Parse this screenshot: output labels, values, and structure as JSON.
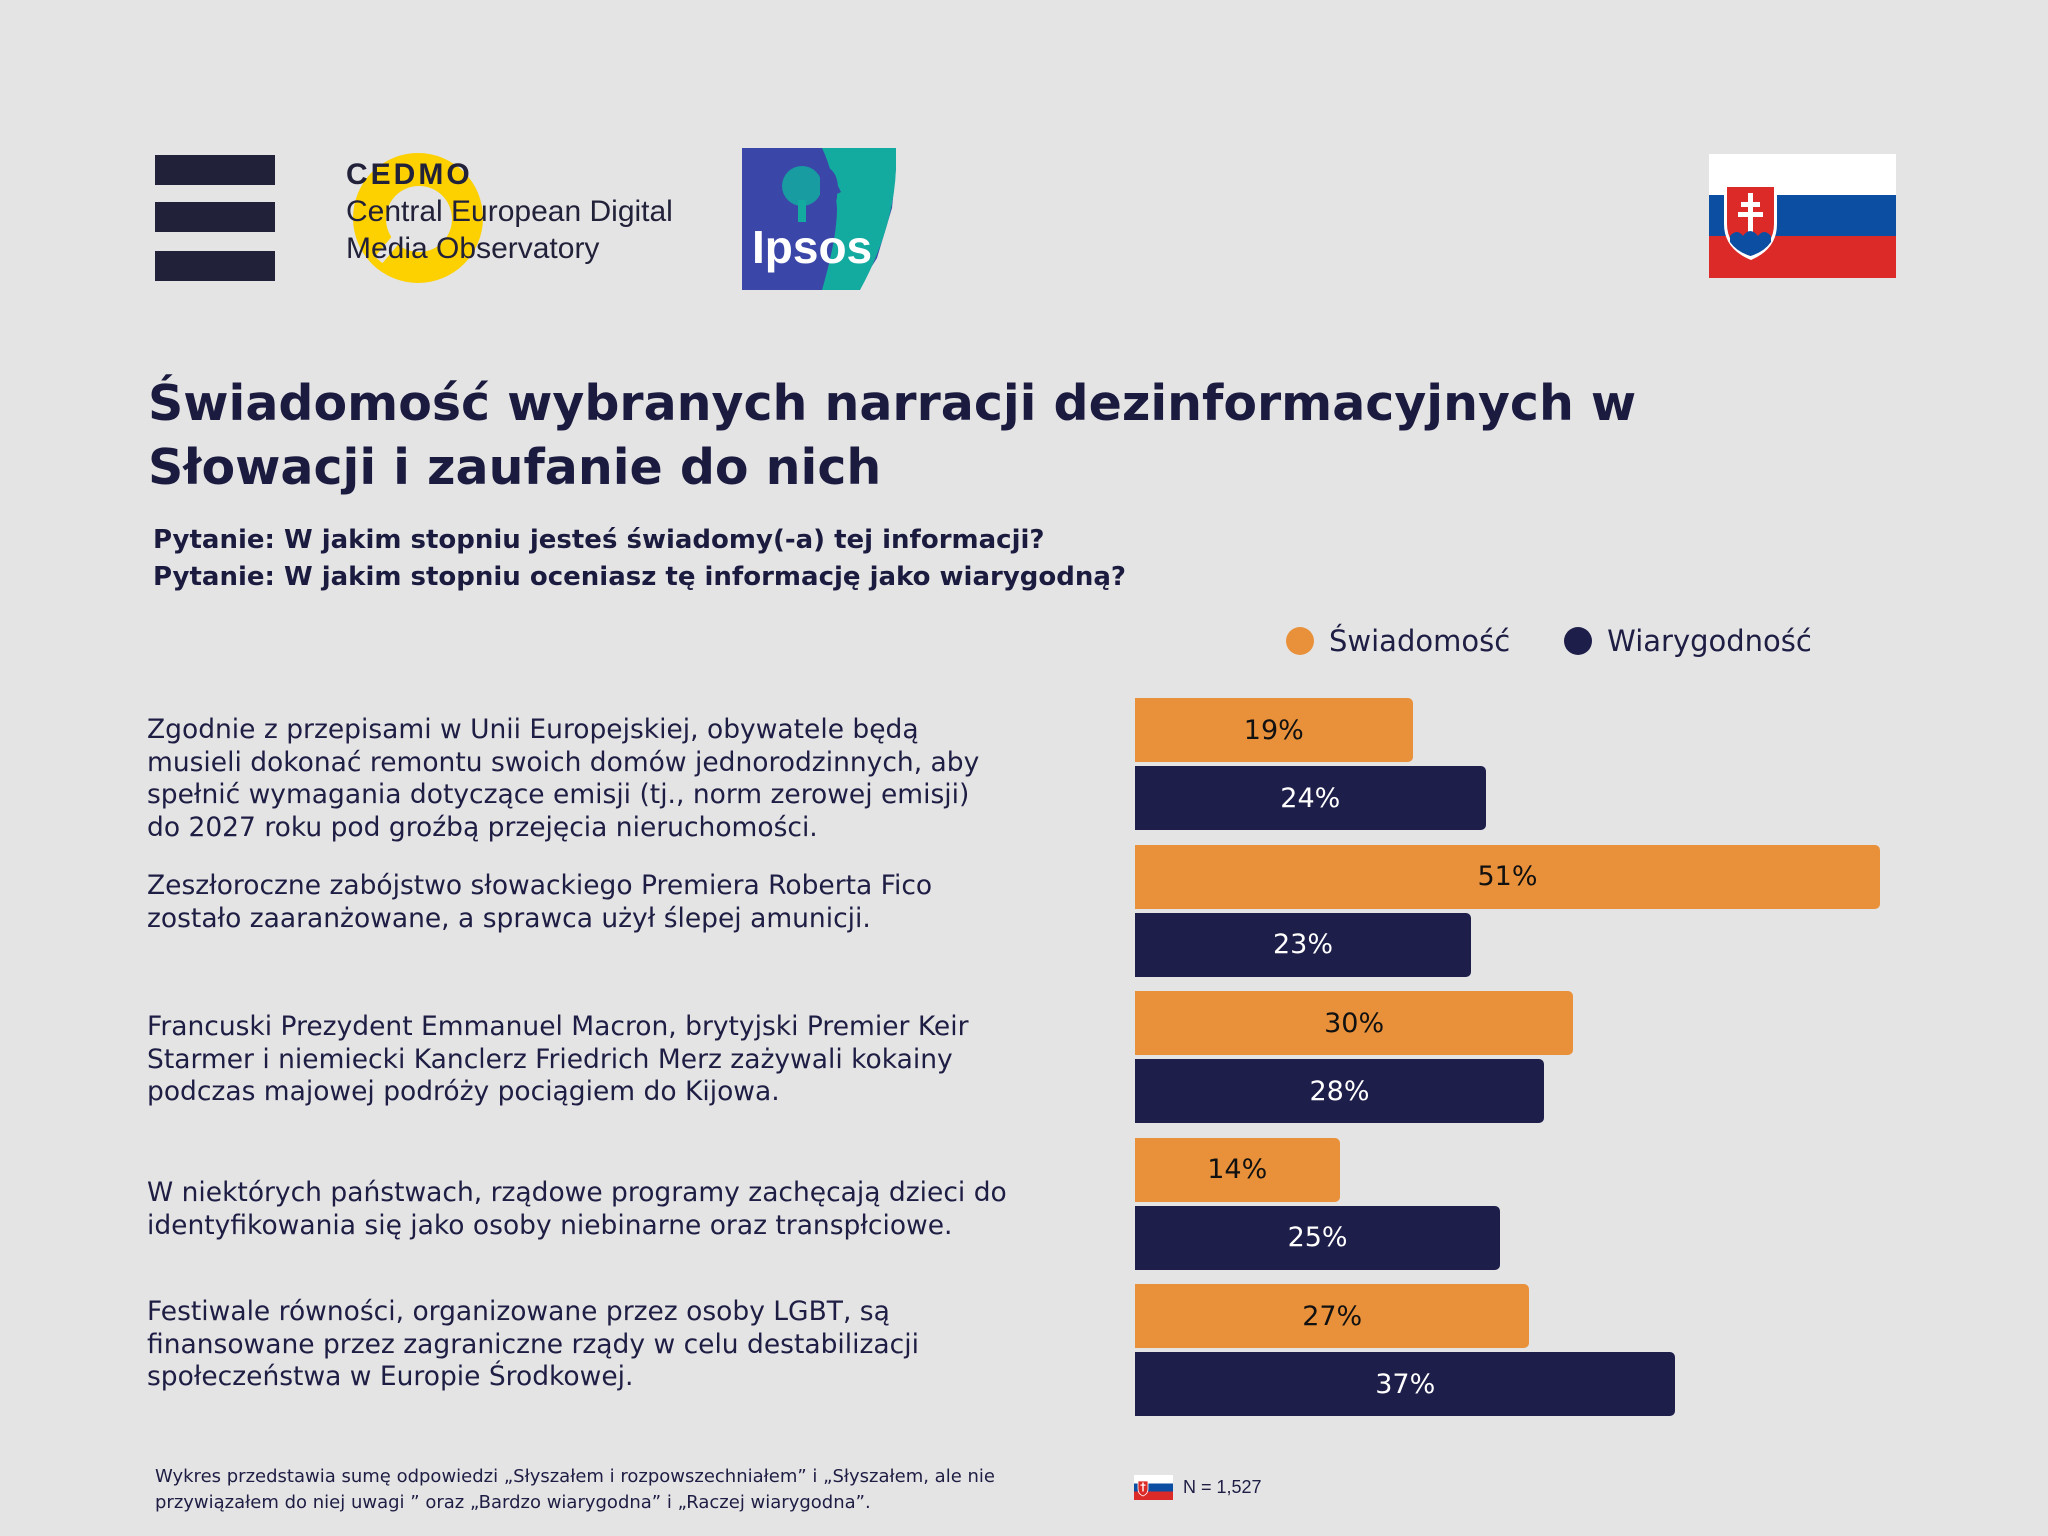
{
  "header": {
    "cedmo": {
      "name": "CEDMO",
      "line1": "Central European Digital",
      "line2": "Media Observatory"
    },
    "ipsos": {
      "name": "Ipsos"
    },
    "country_flag": "flag-slovakia"
  },
  "title": {
    "line1": "Świadomość wybranych narracji dezinformacyjnych w",
    "line2": "Słowacji i zaufanie do nich"
  },
  "questions": [
    "Pytanie: W jakim stopniu jesteś świadomy(-a) tej informacji?",
    "Pytanie: W jakim stopniu oceniasz tę informację jako wiarygodną?"
  ],
  "colors": {
    "awareness": "#e8913a",
    "credibility": "#1e1e4a",
    "background": "#e4e4e4"
  },
  "chart_data": {
    "type": "bar",
    "orientation": "horizontal",
    "title": "Świadomość wybranych narracji dezinformacyjnych w Słowacji i zaufanie do nich",
    "xlabel": "",
    "ylabel": "",
    "unit": "%",
    "xlim": [
      0,
      51
    ],
    "grid": false,
    "legend_position": "top-right",
    "categories": [
      "Zgodnie z przepisami w Unii Europejskiej, obywatele będą musieli dokonać remontu swoich domów jednorodzinnych, aby spełnić wymagania dotyczące emisji (tj., norm zerowej emisji) do 2027 roku pod groźbą przejęcia nieruchomości.",
      "Zeszłoroczne zabójstwo słowackiego Premiera Roberta Fico zostało zaaranżowane, a sprawca użył ślepej amunicji.",
      "Francuski Prezydent Emmanuel Macron, brytyjski Premier Keir Starmer i niemiecki Kanclerz Friedrich Merz zażywali kokainy podczas majowej podróży pociągiem do Kijowa.",
      "W niektórych państwach, rządowe programy zachęcają dzieci do identyfikowania się jako osoby niebinarne oraz transpłciowe.",
      "Festiwale równości, organizowane przez osoby LGBT, są finansowane przez zagraniczne rządy w celu destabilizacji społeczeństwa w Europie Środkowej."
    ],
    "category_lines": [
      [
        "Zgodnie z przepisami w Unii Europejskiej, obywatele będą",
        "musieli dokonać remontu swoich domów jednorodzinnych, aby",
        "spełnić wymagania dotyczące emisji (tj., norm zerowej emisji)",
        "do 2027 roku pod groźbą przejęcia nieruchomości."
      ],
      [
        "Zeszłoroczne zabójstwo słowackiego Premiera Roberta Fico",
        "zostało zaaranżowane, a sprawca użył ślepej amunicji."
      ],
      [
        "Francuski Prezydent Emmanuel Macron, brytyjski Premier Keir",
        "Starmer i niemiecki Kanclerz Friedrich Merz zażywali kokainy",
        "podczas majowej podróży pociągiem do Kijowa."
      ],
      [
        "W niektórych państwach, rządowe programy zachęcają dzieci do",
        "identyfikowania się jako osoby niebinarne oraz transpłciowe."
      ],
      [
        "Festiwale równości, organizowane przez osoby LGBT, są",
        "finansowane przez zagraniczne rządy w celu destabilizacji",
        "społeczeństwa w Europie Środkowej."
      ]
    ],
    "series": [
      {
        "name": "Świadomość",
        "color": "#e8913a",
        "values": [
          19,
          51,
          30,
          14,
          27
        ]
      },
      {
        "name": "Wiarygodność",
        "color": "#1e1e4a",
        "values": [
          24,
          23,
          28,
          25,
          37
        ]
      }
    ]
  },
  "footer": {
    "note_line1": "Wykres przedstawia sumę odpowiedzi „Słyszałem i rozpowszechniałem” i „Słyszałem, ale nie",
    "note_line2": "przywiązałem do niej uwagi ” oraz „Bardzo wiarygodna” i „Raczej wiarygodna”.",
    "sample_size": "N = 1,527"
  }
}
